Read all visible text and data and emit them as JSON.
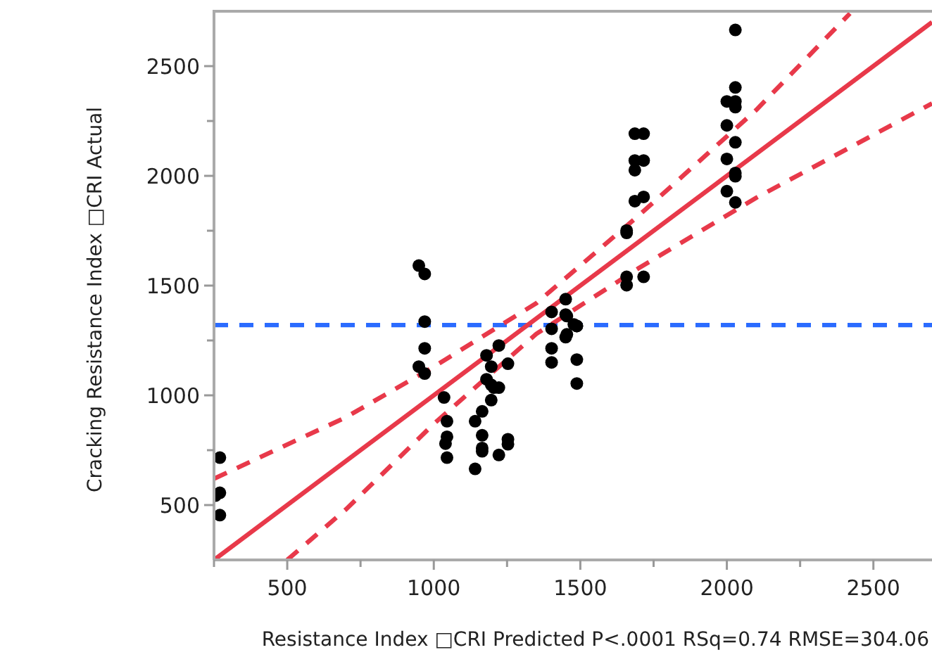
{
  "chart_data": {
    "type": "scatter",
    "xlabel": "Resistance Index □CRI Predicted P<.0001 RSq=0.74 RMSE=304.06",
    "ylabel": "Cracking Resistance Index □CRI Actual",
    "xlim": [
      250,
      2700
    ],
    "ylim": [
      250,
      2750
    ],
    "xticks": [
      {
        "value": 250,
        "label": null
      },
      500,
      {
        "value": 750,
        "label": null
      },
      1000,
      {
        "value": 1250,
        "label": null
      },
      1500,
      {
        "value": 1750,
        "label": null
      },
      2000,
      {
        "value": 2250,
        "label": null
      },
      2500
    ],
    "yticks": [
      500,
      {
        "value": 750,
        "label": null
      },
      1000,
      {
        "value": 1250,
        "label": null
      },
      1500,
      {
        "value": 1750,
        "label": null
      },
      2000,
      {
        "value": 2250,
        "label": null
      },
      2500
    ],
    "grid": false,
    "series": [
      {
        "color": "#000000",
        "x": [
          270,
          270,
          255,
          270,
          949,
          969,
          969,
          969,
          949,
          969,
          1035,
          1045,
          1045,
          1040,
          1045,
          1141,
          1141,
          1165,
          1165,
          1165,
          1165,
          1180,
          1196,
          1180,
          1196,
          1196,
          1222,
          1222,
          1205,
          1253,
          1253,
          1253,
          1222,
          1402,
          1450,
          1402,
          1450,
          1450,
          1402,
          1402,
          1478,
          1454,
          1488,
          1454,
          1488,
          1488,
          1488,
          1658,
          1658,
          1658,
          1658,
          1716,
          1686,
          1716,
          1686,
          1716,
          1686,
          1686,
          1716,
          2029,
          2029,
          2000,
          2029,
          2029,
          2000,
          2029,
          2000,
          2029,
          2029,
          2000,
          2029
        ],
        "values": [
          716,
          556,
          543,
          454,
          1591,
          1553,
          1336,
          1214,
          1131,
          1099,
          990,
          882,
          811,
          780,
          716,
          882,
          665,
          927,
          818,
          760,
          745,
          1182,
          1131,
          1073,
          1048,
          978,
          1227,
          1035,
          1035,
          1144,
          800,
          777,
          728,
          1380,
          1438,
          1303,
          1368,
          1265,
          1214,
          1150,
          1323,
          1361,
          1316,
          1278,
          1163,
          1054,
          1316,
          1751,
          1740,
          1540,
          1502,
          1540,
          2192,
          2192,
          2070,
          2070,
          2026,
          1885,
          1904,
          2665,
          2403,
          2339,
          2339,
          2313,
          2230,
          2153,
          2077,
          2013,
          1998,
          1930,
          1879
        ]
      },
      {
        "type": "line",
        "color": "#e8394a",
        "line_style": "solid",
        "x": [
          250,
          2700
        ],
        "values": [
          250,
          2700
        ]
      },
      {
        "type": "line",
        "color": "#e8394a",
        "line_style": "dashed",
        "x": [
          250,
          700,
          1000,
          1350,
          1700,
          2100,
          2420
        ],
        "values": [
          620,
          900,
          1130,
          1420,
          1820,
          2300,
          2740
        ]
      },
      {
        "type": "line",
        "color": "#e8394a",
        "line_style": "dashed",
        "x": [
          500,
          700,
          1000,
          1350,
          1700,
          2100,
          2700
        ],
        "values": [
          250,
          480,
          870,
          1280,
          1580,
          1900,
          2330
        ]
      }
    ],
    "ref_lines": [
      {
        "axis": "y",
        "value": 1320,
        "color": "#2a6bff",
        "line_style": "dashed"
      }
    ]
  }
}
